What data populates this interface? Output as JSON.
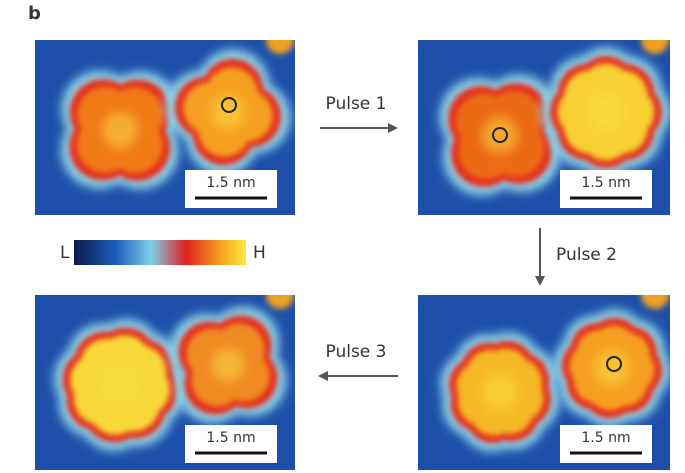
{
  "panel_label": "b",
  "images": [
    {
      "scale_bar": "1.5 nm"
    },
    {
      "scale_bar": "1.5 nm"
    },
    {
      "scale_bar": "1.5 nm"
    },
    {
      "scale_bar": "1.5 nm"
    }
  ],
  "arrows": [
    {
      "label": "Pulse 1"
    },
    {
      "label": "Pulse 2"
    },
    {
      "label": "Pulse 3"
    }
  ],
  "colorbar": {
    "low": "L",
    "high": "H"
  }
}
